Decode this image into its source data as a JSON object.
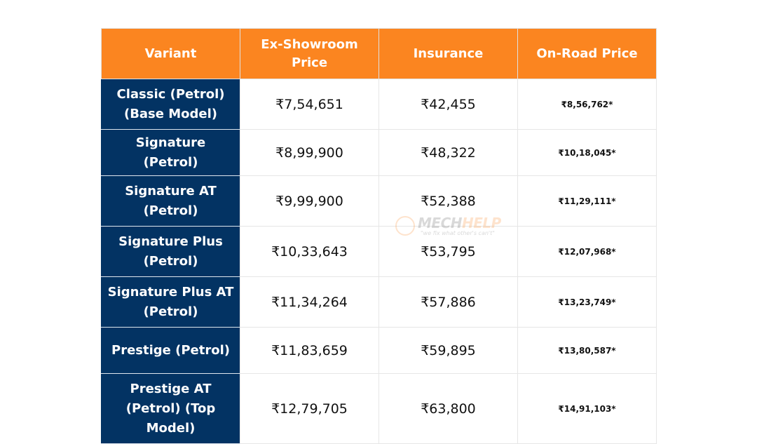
{
  "table": {
    "headers": [
      "Variant",
      "Ex-Showroom Price",
      "Insurance",
      "On-Road Price"
    ],
    "rows": [
      {
        "variant": "Classic (Petrol) (Base Model)",
        "ex_showroom": "₹7,54,651",
        "insurance": "₹42,455",
        "on_road": "₹8,56,762*"
      },
      {
        "variant": "Signature (Petrol)",
        "ex_showroom": "₹8,99,900",
        "insurance": "₹48,322",
        "on_road": "₹10,18,045*"
      },
      {
        "variant": "Signature AT (Petrol)",
        "ex_showroom": "₹9,99,900",
        "insurance": "₹52,388",
        "on_road": "₹11,29,111*"
      },
      {
        "variant": "Signature Plus (Petrol)",
        "ex_showroom": "₹10,33,643",
        "insurance": "₹53,795",
        "on_road": "₹12,07,968*"
      },
      {
        "variant": "Signature Plus AT (Petrol)",
        "ex_showroom": "₹11,34,264",
        "insurance": "₹57,886",
        "on_road": "₹13,23,749*"
      },
      {
        "variant": "Prestige (Petrol)",
        "ex_showroom": "₹11,83,659",
        "insurance": "₹59,895",
        "on_road": "₹13,80,587*"
      },
      {
        "variant": "Prestige AT (Petrol) (Top Model)",
        "ex_showroom": "₹12,79,705",
        "insurance": "₹63,800",
        "on_road": "₹14,91,103*"
      }
    ]
  },
  "watermark": {
    "brand_part1": "MECH",
    "brand_part2": "HELP",
    "tagline": "\"we fix what other's can't\""
  },
  "colors": {
    "header_bg": "#fb8520",
    "variant_bg": "#033363"
  }
}
